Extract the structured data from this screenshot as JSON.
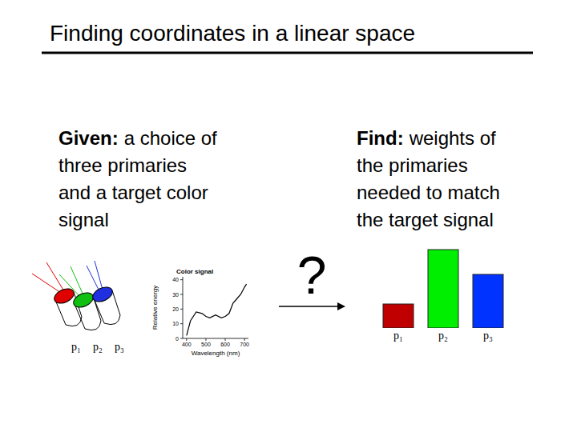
{
  "title": "Finding coordinates in a linear space",
  "given": {
    "label": "Given:",
    "lines": [
      "a choice of",
      "three primaries",
      "and a target color",
      "signal"
    ]
  },
  "find": {
    "label": "Find:",
    "lines": [
      "weights of",
      "the primaries",
      "needed to match",
      "the target signal"
    ]
  },
  "question_mark": "?",
  "projectors": {
    "labels": [
      "p₁",
      "p₂",
      "p₃"
    ],
    "colors": [
      "#e00000",
      "#10c010",
      "#2030e0"
    ]
  },
  "chart_data": [
    {
      "type": "line",
      "title": "Color signal",
      "x_label": "Wavelength (nm)",
      "y_label": "Relative energy",
      "x": [
        400,
        420,
        450,
        480,
        500,
        520,
        550,
        580,
        600,
        620,
        640,
        660,
        680,
        700,
        710
      ],
      "values": [
        2,
        12,
        18,
        17,
        15,
        14,
        16,
        14,
        15,
        17,
        24,
        27,
        30,
        35,
        37
      ],
      "color": "#000000",
      "xlim": [
        380,
        720
      ],
      "ylim": [
        0,
        42
      ],
      "xticks": [
        400,
        500,
        600,
        700
      ],
      "yticks": [
        0,
        10,
        20,
        30,
        40
      ]
    },
    {
      "type": "bar",
      "categories": [
        "p₁",
        "p₂",
        "p₃"
      ],
      "values": [
        30,
        98,
        67
      ],
      "colors": [
        "#c00000",
        "#00ee00",
        "#0033ff"
      ],
      "ylim": [
        0,
        100
      ],
      "tick_labels": "x"
    }
  ]
}
